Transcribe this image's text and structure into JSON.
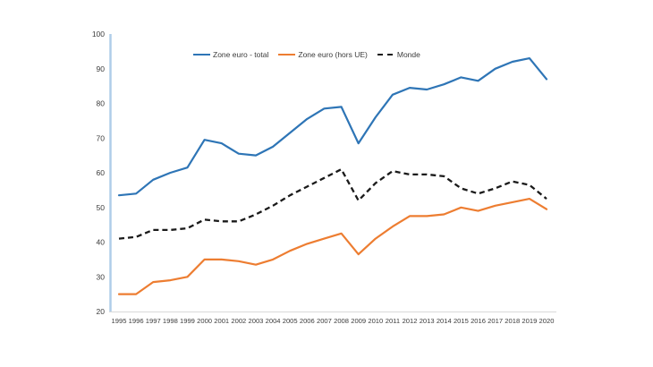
{
  "chart_data": {
    "type": "line",
    "title": "",
    "xlabel": "",
    "ylabel": "",
    "ylim": [
      20,
      100
    ],
    "y_ticks": [
      20,
      30,
      40,
      50,
      60,
      70,
      80,
      90,
      100
    ],
    "grid": false,
    "legend_position": "top",
    "categories": [
      "1995",
      "1996",
      "1997",
      "1998",
      "1999",
      "2000",
      "2001",
      "2002",
      "2003",
      "2004",
      "2005",
      "2006",
      "2007",
      "2008",
      "2009",
      "2010",
      "2011",
      "2012",
      "2013",
      "2014",
      "2015",
      "2016",
      "2017",
      "2018",
      "2019",
      "2020"
    ],
    "series": [
      {
        "name": "Zone euro - total",
        "color": "#2E75B6",
        "style": "solid",
        "values": [
          53.5,
          54,
          58,
          60,
          61.5,
          69.5,
          68.5,
          65.5,
          65,
          67.5,
          71.5,
          75.5,
          78.5,
          79,
          68.5,
          76,
          82.5,
          84.5,
          84,
          85.5,
          87.5,
          86.5,
          90,
          92,
          93,
          87
        ]
      },
      {
        "name": "Zone euro (hors UE)",
        "color": "#ED7D31",
        "style": "solid",
        "values": [
          25,
          25,
          28.5,
          29,
          30,
          35,
          35,
          34.5,
          33.5,
          35,
          37.5,
          39.5,
          41,
          42.5,
          36.5,
          41,
          44.5,
          47.5,
          47.5,
          48,
          50,
          49,
          50.5,
          51.5,
          52.5,
          49.5
        ]
      },
      {
        "name": "Monde",
        "color": "#1a1a1a",
        "style": "dashed",
        "values": [
          41,
          41.5,
          43.5,
          43.5,
          44,
          46.5,
          46,
          46,
          48,
          50.5,
          53.5,
          56,
          58.5,
          61,
          52,
          57,
          60.5,
          59.5,
          59.5,
          59,
          55.5,
          54,
          55.5,
          57.5,
          56.5,
          52.5
        ]
      }
    ],
    "axis_style": {
      "y_axis_line_color": "#AFCDE9",
      "x_axis_line_color": "#D9D9D9",
      "tick_label_color": "#3b3b3b"
    }
  }
}
